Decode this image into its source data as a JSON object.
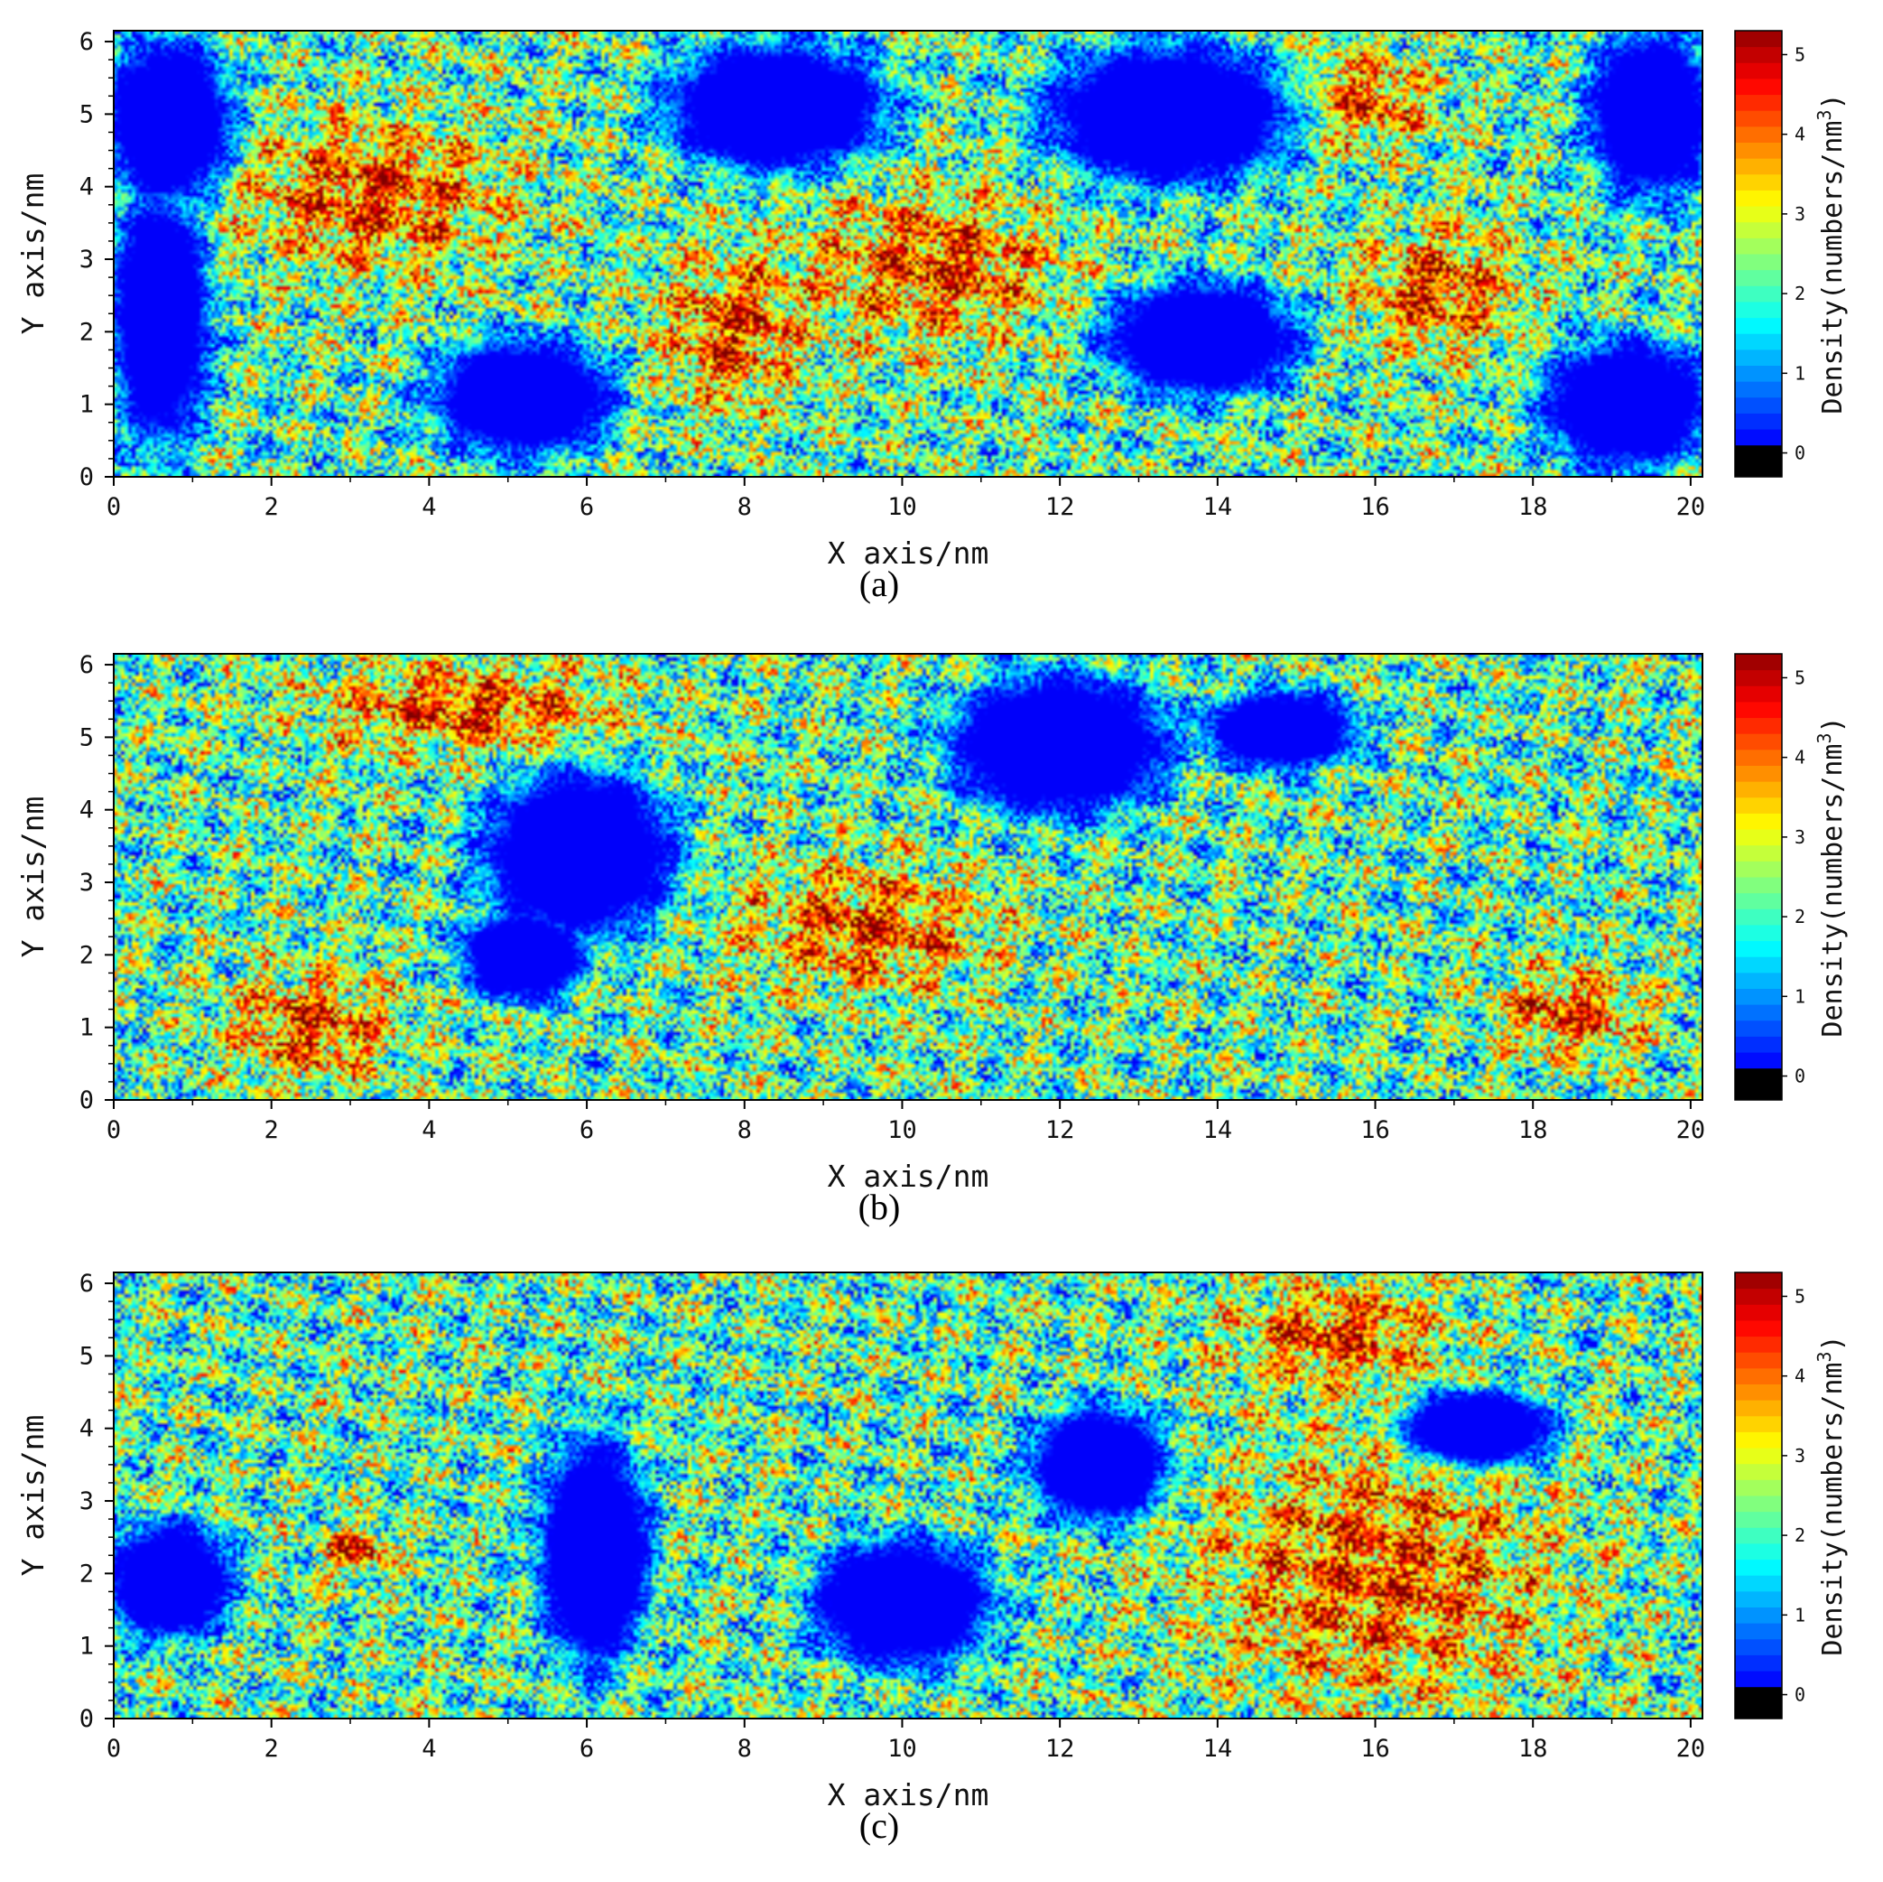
{
  "chart_data": [
    {
      "type": "heatmap",
      "panel_label": "(a)",
      "xlabel": "X axis/nm",
      "ylabel": "Y axis/nm",
      "xlim": [
        0,
        20.15
      ],
      "ylim": [
        0,
        6.15
      ],
      "x_ticks": [
        0,
        2,
        4,
        6,
        8,
        10,
        12,
        14,
        16,
        18,
        20
      ],
      "y_ticks": [
        0,
        1,
        2,
        3,
        4,
        5,
        6
      ],
      "colorbar": {
        "title": "Density(numbers/nm",
        "title_superscript": "3",
        "title_close": ")",
        "range": [
          -0.3,
          5.3
        ],
        "ticks": [
          0,
          1,
          2,
          3,
          4,
          5
        ],
        "colormap": "jet"
      },
      "voids": [
        {
          "x": 0.7,
          "y": 4.9,
          "rx": 0.9,
          "ry": 1.3
        },
        {
          "x": 0.6,
          "y": 2.2,
          "rx": 0.7,
          "ry": 2.0
        },
        {
          "x": 5.2,
          "y": 1.1,
          "rx": 1.3,
          "ry": 0.9
        },
        {
          "x": 8.4,
          "y": 5.1,
          "rx": 1.6,
          "ry": 1.0
        },
        {
          "x": 13.4,
          "y": 5.0,
          "rx": 1.8,
          "ry": 1.1
        },
        {
          "x": 13.8,
          "y": 1.9,
          "rx": 1.4,
          "ry": 0.9
        },
        {
          "x": 19.2,
          "y": 1.0,
          "rx": 1.2,
          "ry": 1.0
        },
        {
          "x": 19.5,
          "y": 5.0,
          "rx": 0.9,
          "ry": 1.3
        }
      ],
      "hot_spots": [
        {
          "x": 3.3,
          "y": 3.9,
          "rx": 2.0,
          "ry": 1.2
        },
        {
          "x": 10.4,
          "y": 2.9,
          "rx": 1.8,
          "ry": 1.2
        },
        {
          "x": 16.8,
          "y": 2.6,
          "rx": 1.2,
          "ry": 1.0
        },
        {
          "x": 7.8,
          "y": 2.0,
          "rx": 1.0,
          "ry": 1.2
        },
        {
          "x": 15.8,
          "y": 5.2,
          "rx": 1.0,
          "ry": 0.8
        }
      ]
    },
    {
      "type": "heatmap",
      "panel_label": "(b)",
      "xlabel": "X axis/nm",
      "ylabel": "Y axis/nm",
      "xlim": [
        0,
        20.15
      ],
      "ylim": [
        0,
        6.15
      ],
      "x_ticks": [
        0,
        2,
        4,
        6,
        8,
        10,
        12,
        14,
        16,
        18,
        20
      ],
      "y_ticks": [
        0,
        1,
        2,
        3,
        4,
        5,
        6
      ],
      "colorbar": {
        "title": "Density(numbers/nm",
        "title_superscript": "3",
        "title_close": ")",
        "range": [
          -0.3,
          5.3
        ],
        "ticks": [
          0,
          1,
          2,
          3,
          4,
          5
        ],
        "colormap": "jet"
      },
      "voids": [
        {
          "x": 5.9,
          "y": 3.4,
          "rx": 1.4,
          "ry": 1.3
        },
        {
          "x": 5.2,
          "y": 2.0,
          "rx": 0.9,
          "ry": 0.7
        },
        {
          "x": 12.0,
          "y": 4.9,
          "rx": 1.6,
          "ry": 1.1
        },
        {
          "x": 14.8,
          "y": 5.1,
          "rx": 1.1,
          "ry": 0.6
        }
      ],
      "hot_spots": [
        {
          "x": 4.5,
          "y": 5.4,
          "rx": 2.2,
          "ry": 0.7
        },
        {
          "x": 9.5,
          "y": 2.4,
          "rx": 1.8,
          "ry": 1.0
        },
        {
          "x": 18.5,
          "y": 1.2,
          "rx": 1.0,
          "ry": 0.7
        },
        {
          "x": 2.5,
          "y": 1.0,
          "rx": 1.2,
          "ry": 0.9
        }
      ]
    },
    {
      "type": "heatmap",
      "panel_label": "(c)",
      "xlabel": "X axis/nm",
      "ylabel": "Y axis/nm",
      "xlim": [
        0,
        20.15
      ],
      "ylim": [
        0,
        6.15
      ],
      "x_ticks": [
        0,
        2,
        4,
        6,
        8,
        10,
        12,
        14,
        16,
        18,
        20
      ],
      "y_ticks": [
        0,
        1,
        2,
        3,
        4,
        5,
        6
      ],
      "colorbar": {
        "title": "Density(numbers/nm",
        "title_superscript": "3",
        "title_close": ")",
        "range": [
          -0.3,
          5.3
        ],
        "ticks": [
          0,
          1,
          2,
          3,
          4,
          5
        ],
        "colormap": "jet"
      },
      "voids": [
        {
          "x": 0.7,
          "y": 1.9,
          "rx": 0.9,
          "ry": 0.9
        },
        {
          "x": 6.1,
          "y": 2.3,
          "rx": 0.8,
          "ry": 1.8
        },
        {
          "x": 10.0,
          "y": 1.6,
          "rx": 1.3,
          "ry": 1.0
        },
        {
          "x": 12.5,
          "y": 3.5,
          "rx": 1.0,
          "ry": 0.9
        },
        {
          "x": 17.3,
          "y": 4.0,
          "rx": 1.1,
          "ry": 0.6
        }
      ],
      "hot_spots": [
        {
          "x": 16.0,
          "y": 2.0,
          "rx": 2.5,
          "ry": 2.0
        },
        {
          "x": 15.5,
          "y": 5.3,
          "rx": 1.5,
          "ry": 0.8
        },
        {
          "x": 3.1,
          "y": 2.3,
          "rx": 0.5,
          "ry": 0.4
        }
      ]
    }
  ]
}
